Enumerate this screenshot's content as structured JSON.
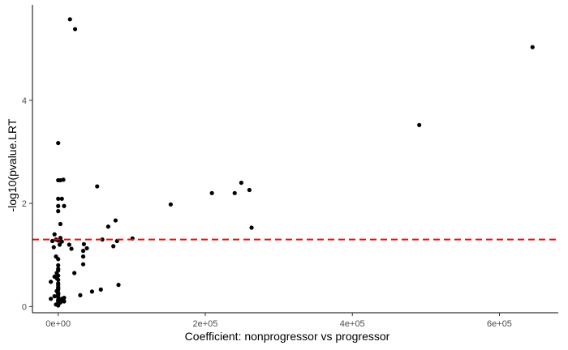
{
  "chart_data": {
    "type": "scatter",
    "xlabel": "Coefficient: nonprogressor vs progressor",
    "ylabel": "-log10(pvalue.LRT",
    "xlim": [
      -35000,
      680000
    ],
    "ylim": [
      -0.12,
      5.85
    ],
    "x_ticks": [
      0,
      200000,
      400000,
      600000
    ],
    "x_tick_labels": [
      "0e+00",
      "2e+05",
      "4e+05",
      "6e+05"
    ],
    "y_ticks": [
      0,
      2,
      4
    ],
    "y_tick_labels": [
      "0",
      "2",
      "4"
    ],
    "grid": false,
    "threshold_line": {
      "y": 1.3,
      "color": "#ff0000",
      "style": "dashed"
    },
    "point_color": "#000000",
    "points": [
      [
        16000,
        5.57
      ],
      [
        23000,
        5.38
      ],
      [
        645000,
        5.03
      ],
      [
        491000,
        3.52
      ],
      [
        0,
        3.17
      ],
      [
        0,
        2.45
      ],
      [
        3000,
        2.45
      ],
      [
        7000,
        2.46
      ],
      [
        53000,
        2.33
      ],
      [
        249000,
        2.4
      ],
      [
        260000,
        2.26
      ],
      [
        209000,
        2.2
      ],
      [
        240000,
        2.2
      ],
      [
        153000,
        1.98
      ],
      [
        0,
        2.09
      ],
      [
        5000,
        2.09
      ],
      [
        0,
        1.95
      ],
      [
        8000,
        1.95
      ],
      [
        0,
        1.85
      ],
      [
        78000,
        1.67
      ],
      [
        68000,
        1.55
      ],
      [
        263000,
        1.53
      ],
      [
        3000,
        1.6
      ],
      [
        -5000,
        1.4
      ],
      [
        -3000,
        1.3
      ],
      [
        0,
        1.28
      ],
      [
        3000,
        1.33
      ],
      [
        5000,
        1.26
      ],
      [
        2000,
        1.2
      ],
      [
        -8000,
        1.27
      ],
      [
        15000,
        1.2
      ],
      [
        -6000,
        1.15
      ],
      [
        18000,
        1.12
      ],
      [
        60000,
        1.3
      ],
      [
        101000,
        1.32
      ],
      [
        80000,
        1.27
      ],
      [
        75000,
        1.17
      ],
      [
        35000,
        1.21
      ],
      [
        39000,
        1.13
      ],
      [
        34000,
        1.08
      ],
      [
        -3000,
        0.97
      ],
      [
        0,
        0.92
      ],
      [
        34000,
        0.97
      ],
      [
        34000,
        0.82
      ],
      [
        0,
        0.8
      ],
      [
        0,
        0.73
      ],
      [
        0,
        0.7
      ],
      [
        -2000,
        0.65
      ],
      [
        22000,
        0.65
      ],
      [
        0,
        0.6
      ],
      [
        -5000,
        0.58
      ],
      [
        -2000,
        0.55
      ],
      [
        0,
        0.52
      ],
      [
        -10000,
        0.48
      ],
      [
        0,
        0.45
      ],
      [
        0,
        0.42
      ],
      [
        0,
        0.38
      ],
      [
        82000,
        0.42
      ],
      [
        0,
        0.35
      ],
      [
        0,
        0.33
      ],
      [
        58000,
        0.33
      ],
      [
        46000,
        0.29
      ],
      [
        -2000,
        0.3
      ],
      [
        0,
        0.27
      ],
      [
        0,
        0.25
      ],
      [
        0,
        0.23
      ],
      [
        30000,
        0.22
      ],
      [
        -5000,
        0.2
      ],
      [
        0,
        0.18
      ],
      [
        -10000,
        0.15
      ],
      [
        5000,
        0.15
      ],
      [
        0,
        0.13
      ],
      [
        8000,
        0.17
      ],
      [
        0,
        0.1
      ],
      [
        8000,
        0.1
      ],
      [
        3000,
        0.08
      ],
      [
        0,
        0.06
      ],
      [
        -3000,
        0.04
      ],
      [
        0,
        0.03
      ],
      [
        0,
        0.02
      ]
    ]
  }
}
